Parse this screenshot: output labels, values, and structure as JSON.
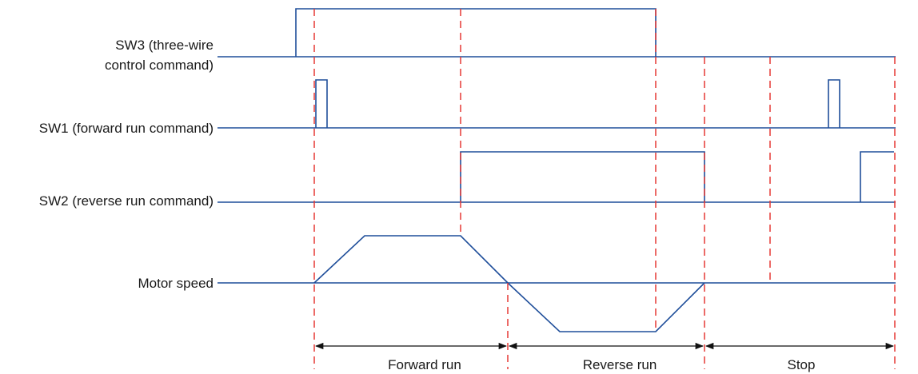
{
  "signals": {
    "sw3_line1": "SW3 (three-wire",
    "sw3_line2": "control command)",
    "sw1": "SW1 (forward run command)",
    "sw2": "SW2 (reverse run command)",
    "motor": "Motor speed"
  },
  "phases": {
    "forward": "Forward run",
    "reverse": "Reverse run",
    "stop": "Stop"
  },
  "colors": {
    "signal": "#1f4e9a",
    "guide": "#e53935",
    "dimension": "#111111"
  }
}
